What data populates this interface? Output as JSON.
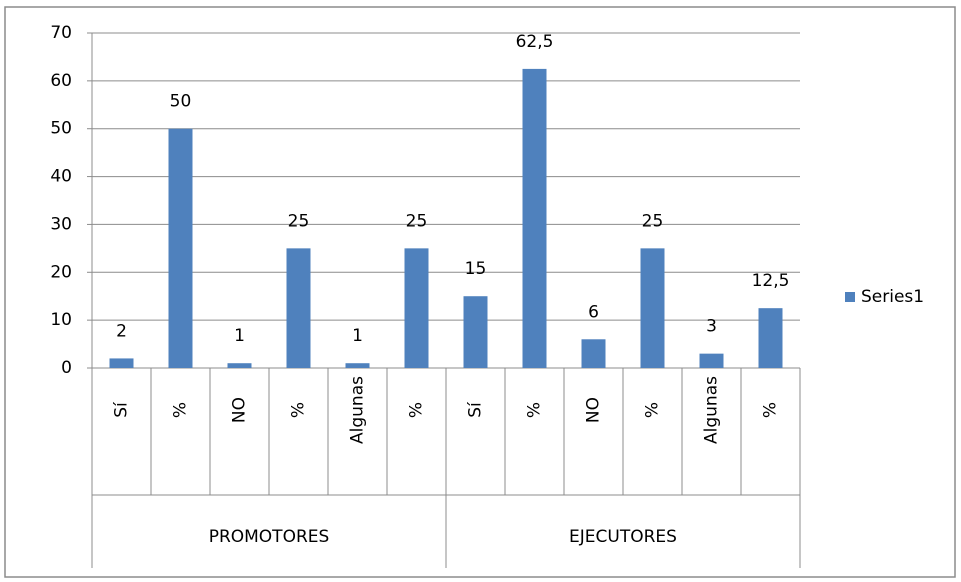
{
  "chart_data": {
    "type": "bar",
    "categories": [
      "Sí",
      "%",
      "NO",
      "%",
      "Algunas",
      "%",
      "Sí",
      "%",
      "NO",
      "%",
      "Algunas",
      "%"
    ],
    "groups": [
      "PROMOTORES",
      "EJECUTORES"
    ],
    "series": [
      {
        "name": "Series1",
        "color": "#4f81bd",
        "values": [
          2,
          50,
          1,
          25,
          1,
          25,
          15,
          62.5,
          6,
          25,
          3,
          12.5
        ],
        "value_labels": [
          "2",
          "50",
          "1",
          "25",
          "1",
          "25",
          "15",
          "62,5",
          "6",
          "25",
          "3",
          "12,5"
        ]
      }
    ],
    "ylim": [
      0,
      70
    ],
    "yticks": [
      0,
      10,
      20,
      30,
      40,
      50,
      60,
      70
    ],
    "grid": true,
    "legend": "right"
  }
}
